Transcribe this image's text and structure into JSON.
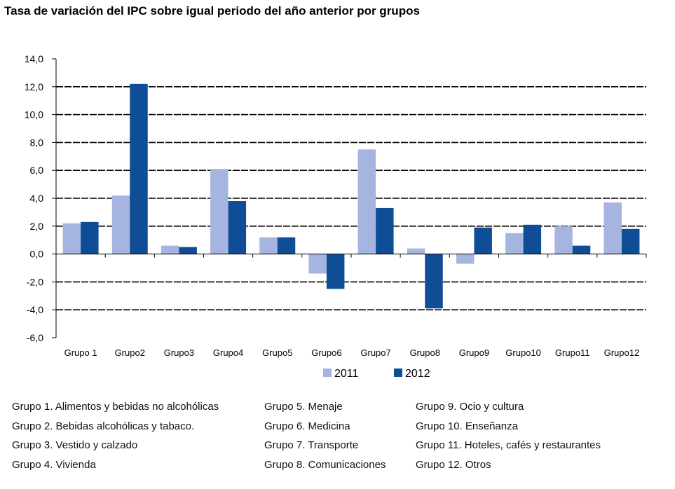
{
  "chart_data": {
    "type": "bar",
    "title": "Tasa de variación del IPC sobre igual periodo del año anterior por grupos",
    "categories": [
      "Grupo 1",
      "Grupo2",
      "Grupo3",
      "Grupo4",
      "Grupo5",
      "Grupo6",
      "Grupo7",
      "Grupo8",
      "Grupo9",
      "Grupo10",
      "Grupo11",
      "Grupo12"
    ],
    "series": [
      {
        "name": "2011",
        "color": "#a6b4e0",
        "values": [
          2.2,
          4.2,
          0.6,
          6.1,
          1.2,
          -1.4,
          7.5,
          0.4,
          -0.7,
          1.5,
          2.0,
          3.7
        ]
      },
      {
        "name": "2012",
        "color": "#0f4e96",
        "values": [
          2.3,
          12.2,
          0.5,
          3.8,
          1.2,
          -2.5,
          3.3,
          -3.9,
          1.9,
          2.1,
          0.6,
          1.8
        ]
      }
    ],
    "ylim": [
      -6.0,
      14.0
    ],
    "yticks": [
      "14,0",
      "12,0",
      "10,0",
      "8,0",
      "6,0",
      "4,0",
      "2,0",
      "0,0",
      "-2,0",
      "-4,0",
      "-6,0"
    ],
    "ytick_values": [
      14,
      12,
      10,
      8,
      6,
      4,
      2,
      0,
      -2,
      -4,
      -6
    ],
    "grid": true,
    "legend_position": "bottom"
  },
  "notes": [
    "Grupo 1. Alimentos y bebidas no alcohólicas",
    "Grupo 2. Bebidas alcohólicas y  tabaco.",
    "Grupo 3. Vestido y calzado",
    "Grupo 4. Vivienda",
    "Grupo 5. Menaje",
    "Grupo 6. Medicina",
    "Grupo 7. Transporte",
    "Grupo 8. Comunicaciones",
    "Grupo 9. Ocio y cultura",
    "Grupo 10. Enseñanza",
    "Grupo 11. Hoteles, cafés y restaurantes",
    "Grupo 12. Otros"
  ]
}
